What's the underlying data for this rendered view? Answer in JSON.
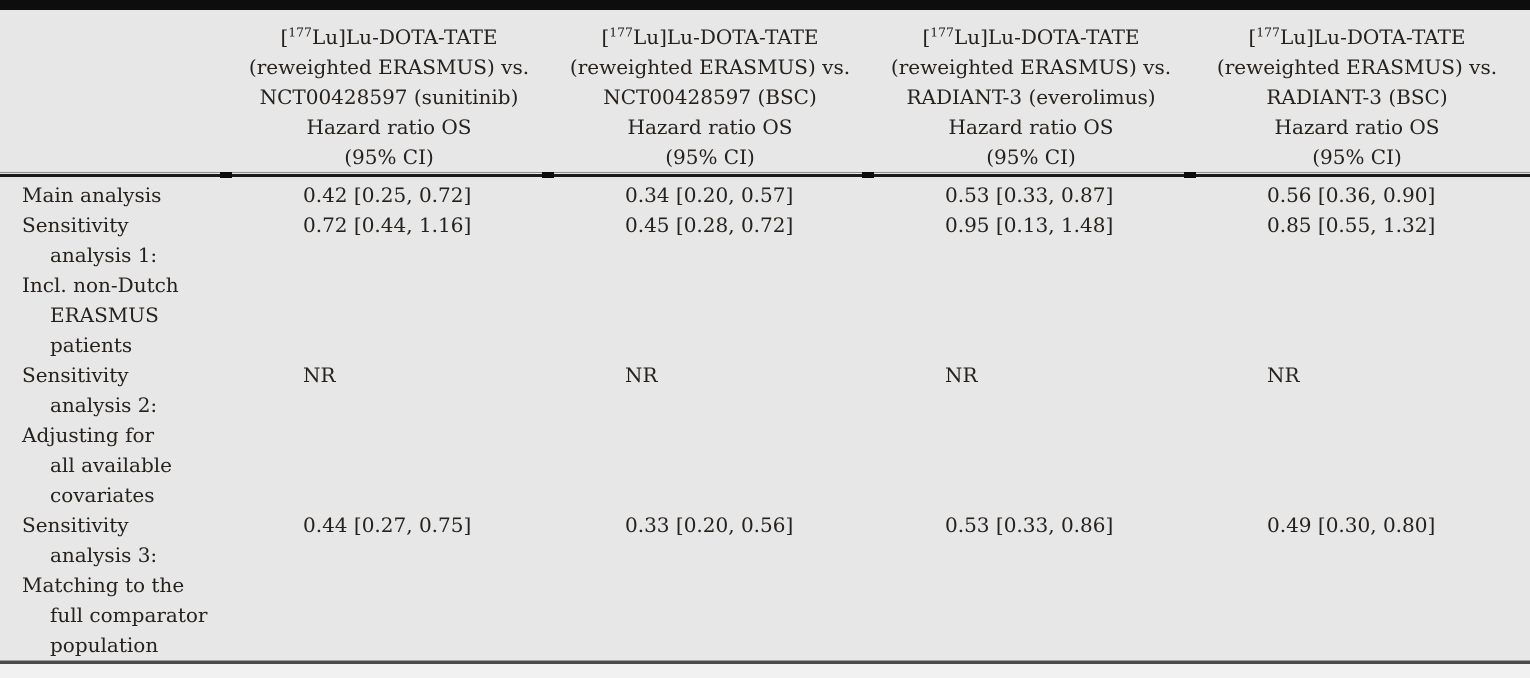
{
  "colors": {
    "background": "#e7e7e7",
    "top_bar": "#0d0d0d",
    "text": "#26211c",
    "mid_rule": "#1b1b1b",
    "bottom_rule": "#4a4a4a",
    "footer_strip": "#f1f1f1"
  },
  "table": {
    "description": "Hazard ratio OS comparison table",
    "header_columns": [
      {
        "compound_pre": "[",
        "compound_sup": "177",
        "compound_post": "Lu]Lu-DOTA-TATE",
        "vs_line": "(reweighted ERASMUS) vs.",
        "comparator": "NCT00428597 (sunitinib)",
        "measure": "Hazard ratio OS",
        "ci_label": "(95% CI)"
      },
      {
        "compound_pre": "[",
        "compound_sup": "177",
        "compound_post": "Lu]Lu-DOTA-TATE",
        "vs_line": "(reweighted ERASMUS) vs.",
        "comparator": "NCT00428597 (BSC)",
        "measure": "Hazard ratio OS",
        "ci_label": "(95% CI)"
      },
      {
        "compound_pre": "[",
        "compound_sup": "177",
        "compound_post": "Lu]Lu-DOTA-TATE",
        "vs_line": "(reweighted ERASMUS) vs.",
        "comparator": "RADIANT-3 (everolimus)",
        "measure": "Hazard ratio OS",
        "ci_label": "(95% CI)"
      },
      {
        "compound_pre": "[",
        "compound_sup": "177",
        "compound_post": "Lu]Lu-DOTA-TATE",
        "vs_line": "(reweighted ERASMUS) vs.",
        "comparator": "RADIANT-3 (BSC)",
        "measure": "Hazard ratio OS",
        "ci_label": "(95% CI)"
      }
    ],
    "rows": [
      {
        "label_lines": [
          {
            "text": "Main analysis",
            "indent": false
          }
        ],
        "values": [
          "0.42 [0.25, 0.72]",
          "0.34 [0.20, 0.57]",
          "0.53 [0.33, 0.87]",
          "0.56 [0.36, 0.90]"
        ]
      },
      {
        "label_lines": [
          {
            "text": "Sensitivity",
            "indent": false
          },
          {
            "text": "analysis 1:",
            "indent": true
          },
          {
            "text": "Incl. non-Dutch",
            "indent": false
          },
          {
            "text": "ERASMUS",
            "indent": true
          },
          {
            "text": "patients",
            "indent": true
          }
        ],
        "values": [
          "0.72 [0.44, 1.16]",
          "0.45 [0.28, 0.72]",
          "0.95 [0.13, 1.48]",
          "0.85 [0.55, 1.32]"
        ]
      },
      {
        "label_lines": [
          {
            "text": "Sensitivity",
            "indent": false
          },
          {
            "text": "analysis 2:",
            "indent": true
          },
          {
            "text": "Adjusting for",
            "indent": false
          },
          {
            "text": "all available",
            "indent": true
          },
          {
            "text": "covariates",
            "indent": true
          }
        ],
        "values": [
          "NR",
          "NR",
          "NR",
          "NR"
        ]
      },
      {
        "label_lines": [
          {
            "text": "Sensitivity",
            "indent": false
          },
          {
            "text": "analysis 3:",
            "indent": true
          },
          {
            "text": "Matching to the",
            "indent": false
          },
          {
            "text": "full comparator",
            "indent": true
          },
          {
            "text": "population",
            "indent": true
          }
        ],
        "values": [
          "0.44 [0.27, 0.75]",
          "0.33 [0.20, 0.56]",
          "0.53 [0.33, 0.86]",
          "0.49 [0.30, 0.80]"
        ]
      }
    ]
  }
}
